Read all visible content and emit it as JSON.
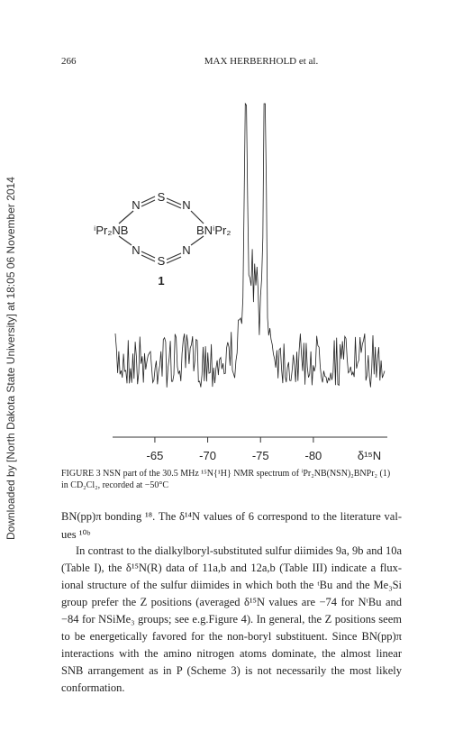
{
  "sidebar": "Downloaded by [North Dakota State University] at 18:05 06 November 2014",
  "header": {
    "page_number": "266",
    "running_title": "MAX HERBERHOLD et al."
  },
  "figure": {
    "structure": {
      "top_n_left": "N",
      "top_s": "S",
      "top_n_right": "N",
      "left_group": "ⁱPr₂NB",
      "right_group": "BNⁱPr₂",
      "bottom_n_left": "N",
      "bottom_s": "S",
      "bottom_n_right": "N",
      "compound_number": "1"
    },
    "spectrum": {
      "xlim": [
        -61,
        -87
      ],
      "xticks": [
        -65,
        -70,
        -75,
        -80
      ],
      "xlabel": "δ¹⁵N"
    },
    "caption": [
      "FIGURE 3 NSN part of the 30.5 MHz ¹⁵N{¹H} NMR spectrum of ⁱPr₂NB(NSN)₂BNPr₂ (1)",
      "in CD₂Cl₂, recorded at −50°C"
    ]
  },
  "body": {
    "lines": [
      "BN(pp)π bonding ¹⁸. The δ¹⁴N values of 6 correspond to the literature val-",
      "ues ¹⁰ᵇ",
      "In contrast to the dialkylboryl-substituted sulfur diimides 9a, 9b and 10a",
      "(Table I), the δ¹⁵N(R) data of 11a,b and 12a,b (Table III) indicate a flux-",
      "ional structure of the sulfur diimides in which both the ᵗBu and the Me₃Si",
      "group prefer the Z positions (averaged δ¹⁵N values are −74 for NᵗBu and",
      "−84 for NSiMe₃ groups; see e.g.Figure 4). In general, the Z positions seem",
      "to be energetically favored for the non-boryl substituent. Since BN(pp)π",
      "interactions with the amino nitrogen atoms dominate, the almost linear",
      "SNB arrangement as in P (Scheme 3) is not necessarily the most likely",
      "conformation."
    ]
  }
}
